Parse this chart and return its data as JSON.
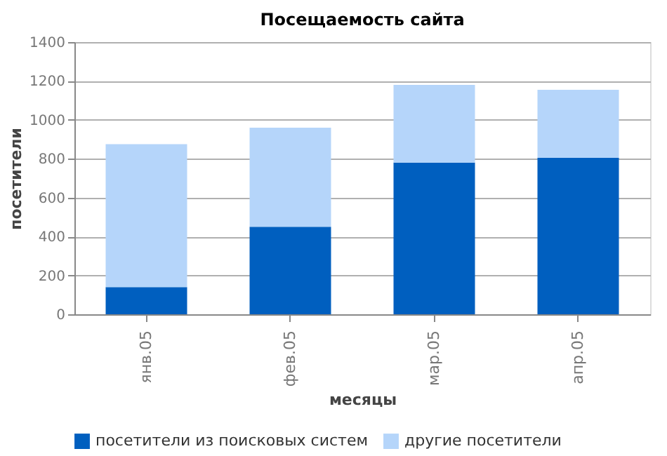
{
  "chart_data": {
    "type": "bar",
    "title": "Посещаемость сайта",
    "xlabel": "месяцы",
    "ylabel": "посетители",
    "categories": [
      "янв.05",
      "фев.05",
      "мар.05",
      "апр.05"
    ],
    "series": [
      {
        "name": "посетители из поисковых систем",
        "color": "#005fbf",
        "values": [
          140,
          450,
          780,
          805
        ]
      },
      {
        "name": "другие посетители",
        "color": "#b5d5fa",
        "values": [
          735,
          510,
          400,
          350
        ]
      }
    ],
    "stacked": true,
    "ylim": [
      0,
      1400
    ],
    "yticks": [
      0,
      200,
      400,
      600,
      800,
      1000,
      1200,
      1400
    ],
    "grid": "y",
    "legend": "bottom"
  }
}
